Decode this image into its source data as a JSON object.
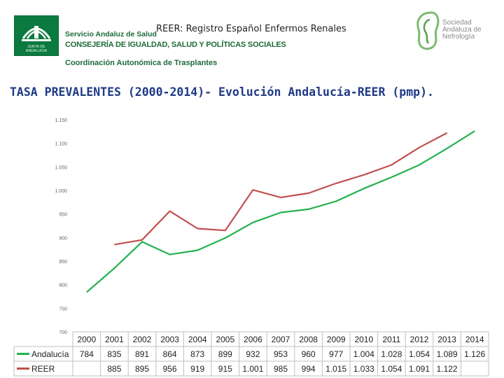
{
  "header": {
    "junta_text": "JUNTA DE ANDALUCIA",
    "org_line1": "Servicio Andaluz de Salud",
    "org_line2": "CONSEJERÍA DE IGUALDAD, SALUD Y POLÍTICAS SOCIALES",
    "org_line3": "Coordinación Autonómica de Trasplantes",
    "reer_title": "REER: Registro Español Enfermos Renales",
    "society_name": [
      "Sociedad",
      "Andaluza de",
      "Nefrología"
    ]
  },
  "main_title": "TASA PREVALENTES (2000-2014)- Evolución Andalucía-REER (pmp).",
  "colors": {
    "andalucia": "#22b24c",
    "reer": "#c0504d",
    "title": "#1f3a86",
    "brand_green": "#1d6b39"
  },
  "chart_data": {
    "type": "line",
    "categories": [
      "2000",
      "2001",
      "2002",
      "2003",
      "2004",
      "2005",
      "2006",
      "2007",
      "2008",
      "2009",
      "2010",
      "2011",
      "2012",
      "2013",
      "2014"
    ],
    "yticks": [
      "700",
      "750",
      "800",
      "850",
      "900",
      "950",
      "1.000",
      "1.050",
      "1.100",
      "1.150"
    ],
    "ylim": [
      700,
      1150
    ],
    "grid": false,
    "series": [
      {
        "name": "Andalucía",
        "color": "#22b24c",
        "values": [
          784,
          835,
          891,
          864,
          873,
          899,
          932,
          953,
          960,
          977,
          1004,
          1028,
          1054,
          1089,
          1126
        ],
        "labels": [
          "784",
          "835",
          "891",
          "864",
          "873",
          "899",
          "932",
          "953",
          "960",
          "977",
          "1.004",
          "1.028",
          "1.054",
          "1.089",
          "1.126"
        ]
      },
      {
        "name": "REER",
        "color": "#c0504d",
        "values": [
          null,
          885,
          895,
          956,
          919,
          915,
          1001,
          985,
          994,
          1015,
          1033,
          1054,
          1091,
          1122,
          null
        ],
        "labels": [
          "",
          "885",
          "895",
          "956",
          "919",
          "915",
          "1.001",
          "985",
          "994",
          "1.015",
          "1.033",
          "1.054",
          "1.091",
          "1.122",
          ""
        ]
      }
    ]
  }
}
